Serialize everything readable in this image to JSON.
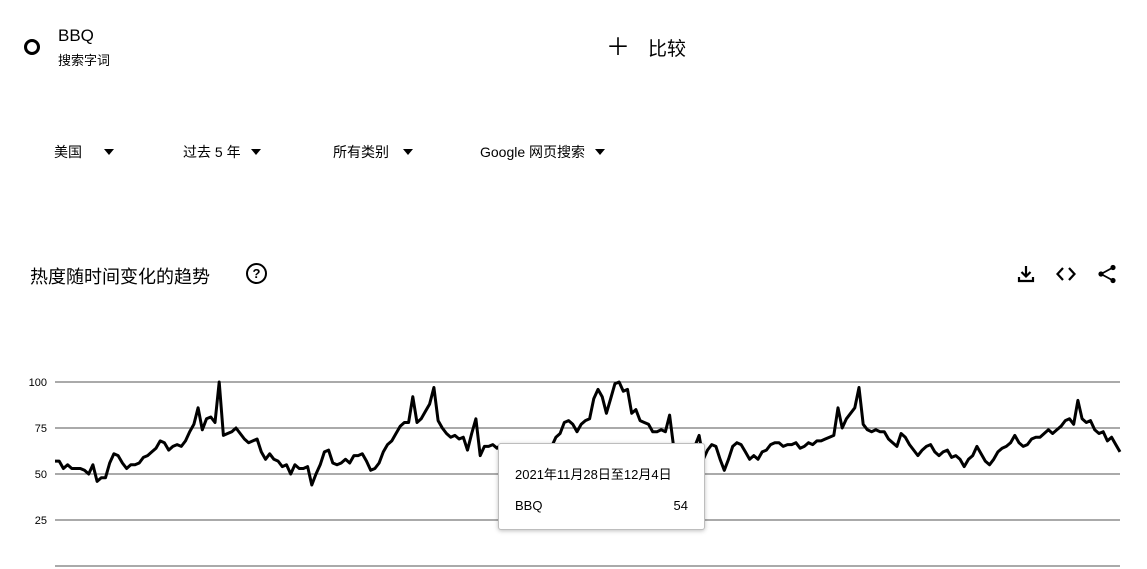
{
  "search_term": {
    "name": "BBQ",
    "type": "搜索字词"
  },
  "compare": {
    "label": "比较"
  },
  "filters": [
    {
      "label": "美国"
    },
    {
      "label": "过去 5 年"
    },
    {
      "label": "所有类别"
    },
    {
      "label": "Google 网页搜索"
    }
  ],
  "section": {
    "title": "热度随时间变化的趋势",
    "help": "?"
  },
  "tooltip": {
    "date": "2021年11月28日至12月4日",
    "term": "BBQ",
    "value": "54"
  },
  "colors": {
    "line": "#000000",
    "grid": "#555555",
    "text": "#202124"
  },
  "icons": [
    "download-icon",
    "embed-code-icon",
    "share-icon",
    "help-icon",
    "plus-icon",
    "caret-down-icon"
  ],
  "chart_data": {
    "type": "line",
    "title": "",
    "xlabel": "",
    "ylabel": "",
    "ylim": [
      0,
      100
    ],
    "yticks": [
      25,
      50,
      75,
      100
    ],
    "grid": true,
    "series": [
      {
        "name": "BBQ",
        "values": [
          57,
          57,
          53,
          55,
          53,
          53,
          53,
          52,
          50,
          55,
          46,
          48,
          48,
          56,
          61,
          60,
          56,
          53,
          55,
          55,
          56,
          59,
          60,
          62,
          64,
          68,
          67,
          63,
          65,
          66,
          65,
          68,
          73,
          77,
          86,
          74,
          80,
          81,
          78,
          100,
          71,
          72,
          73,
          75,
          72,
          69,
          67,
          68,
          69,
          62,
          58,
          61,
          58,
          57,
          54,
          55,
          50,
          55,
          53,
          53,
          54,
          44,
          50,
          55,
          62,
          63,
          56,
          55,
          56,
          58,
          56,
          60,
          60,
          61,
          57,
          52,
          53,
          56,
          62,
          66,
          68,
          72,
          76,
          78,
          78,
          92,
          78,
          80,
          84,
          88,
          97,
          79,
          75,
          72,
          70,
          71,
          69,
          70,
          63,
          72,
          80,
          60,
          65,
          65,
          66,
          64,
          66,
          63,
          64,
          62,
          58,
          62,
          59,
          55,
          57,
          60,
          62,
          62,
          65,
          70,
          72,
          78,
          79,
          77,
          73,
          77,
          79,
          80,
          91,
          96,
          92,
          83,
          91,
          99,
          100,
          95,
          96,
          83,
          85,
          79,
          78,
          77,
          73,
          73,
          74,
          73,
          82,
          64,
          62,
          56,
          55,
          60,
          65,
          71,
          58,
          63,
          66,
          65,
          58,
          52,
          58,
          65,
          67,
          66,
          62,
          58,
          60,
          58,
          62,
          63,
          66,
          67,
          67,
          65,
          66,
          66,
          67,
          64,
          65,
          67,
          66,
          68,
          68,
          69,
          70,
          71,
          86,
          75,
          80,
          83,
          86,
          97,
          77,
          74,
          73,
          74,
          73,
          73,
          69,
          67,
          65,
          72,
          70,
          66,
          63,
          60,
          63,
          65,
          66,
          62,
          60,
          62,
          63,
          59,
          60,
          58,
          54,
          58,
          60,
          65,
          61,
          57,
          55,
          58,
          62,
          64,
          65,
          67,
          71,
          67,
          65,
          66,
          69,
          70,
          70,
          72,
          74,
          72,
          74,
          76,
          79,
          80,
          77,
          90,
          80,
          78,
          79,
          74,
          72,
          73,
          68,
          70,
          66,
          62
        ]
      }
    ]
  }
}
